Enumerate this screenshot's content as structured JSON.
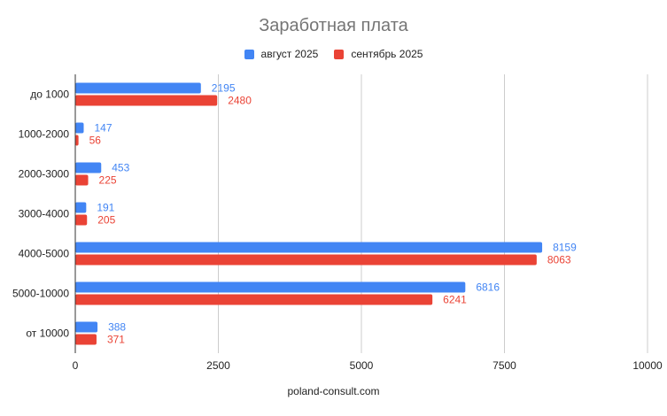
{
  "chart_data": {
    "type": "bar",
    "orientation": "horizontal",
    "title": "Заработная плата",
    "xlabel": "poland-consult.com",
    "ylabel": "",
    "categories": [
      "до 1000",
      "1000-2000",
      "2000-3000",
      "3000-4000",
      "4000-5000",
      "5000-10000",
      "от 10000"
    ],
    "series": [
      {
        "name": "август 2025",
        "color": "#4285F4",
        "values": [
          2195,
          147,
          453,
          191,
          8159,
          6816,
          388
        ]
      },
      {
        "name": "сентябрь 2025",
        "color": "#EA4335",
        "values": [
          2480,
          56,
          225,
          205,
          8063,
          6241,
          371
        ]
      }
    ],
    "xlim": [
      0,
      10000
    ],
    "xticks": [
      "0",
      "2500",
      "5000",
      "7500",
      "10000"
    ],
    "xtick_values": [
      0,
      2500,
      5000,
      7500,
      10000
    ],
    "grid": true,
    "legend_position": "top",
    "data_labels": true
  }
}
